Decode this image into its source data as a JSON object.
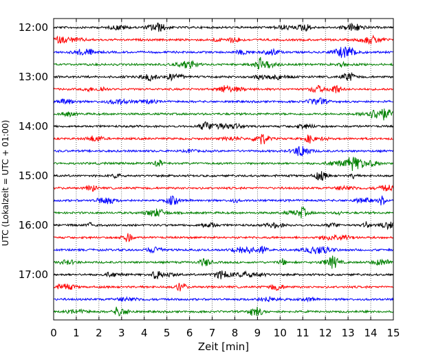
{
  "chart_data": {
    "type": "line",
    "title": "",
    "xlabel": "Zeit  [min]",
    "ylabel": "UTC (Lokalzeit = UTC + 01:00)",
    "xlim": [
      0,
      15
    ],
    "x_ticks": [
      "0",
      "1",
      "2",
      "3",
      "4",
      "5",
      "6",
      "7",
      "8",
      "9",
      "10",
      "11",
      "12",
      "13",
      "14",
      "15"
    ],
    "y_ticks": [
      "12:00",
      "13:00",
      "14:00",
      "15:00",
      "16:00",
      "17:00"
    ],
    "trace_interval_min": 15,
    "trace_count": 24,
    "trace_start": "12:00",
    "trace_colors": [
      "#000000",
      "#ff0000",
      "#0000ff",
      "#008000"
    ],
    "grid": "vertical dotted at each minute",
    "legend": "none"
  }
}
